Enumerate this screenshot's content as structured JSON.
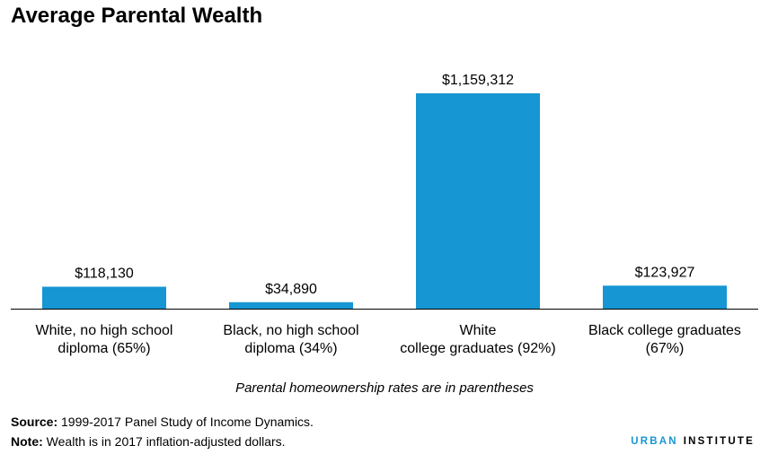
{
  "title": "Average Parental Wealth",
  "chart_data": {
    "type": "bar",
    "title": "Average Parental Wealth",
    "categories": [
      [
        "White, no high school",
        "diploma (65%)"
      ],
      [
        "Black, no high school",
        "diploma (34%)"
      ],
      [
        "White",
        "college graduates (92%)"
      ],
      [
        "Black college graduates",
        "(67%)"
      ]
    ],
    "values": [
      118130,
      34890,
      1159312,
      123927
    ],
    "value_labels": [
      "$118,130",
      "$34,890",
      "$1,159,312",
      "$123,927"
    ],
    "ylim": [
      0,
      1159312
    ],
    "grid": false,
    "bar_color": "#1696d2"
  },
  "subtitle_note": "Parental homeownership rates are in parentheses",
  "footer": {
    "source_label": "Source:",
    "source_text": " 1999-2017 Panel Study of Income Dynamics.",
    "note_label": "Note:",
    "note_text": " Wealth is in 2017 inflation-adjusted dollars."
  },
  "brand": {
    "part1": "URBAN",
    "part2": "INSTITUTE"
  }
}
